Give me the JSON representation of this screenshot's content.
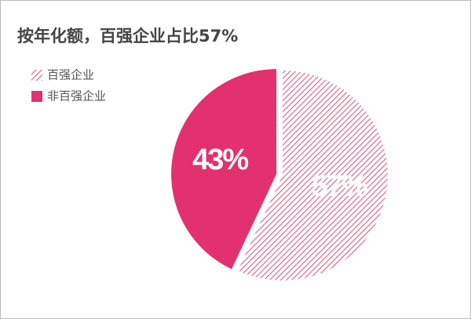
{
  "chart_data": {
    "type": "pie",
    "title": "按年化额，百强企业占比57%",
    "categories": [
      "百强企业",
      "非百强企业"
    ],
    "values": [
      57,
      43
    ],
    "value_labels": [
      "57%",
      "43%"
    ],
    "colors": [
      "#d4608a",
      "#e3306e"
    ],
    "hatched": [
      true,
      false
    ],
    "legend": "top-left"
  }
}
